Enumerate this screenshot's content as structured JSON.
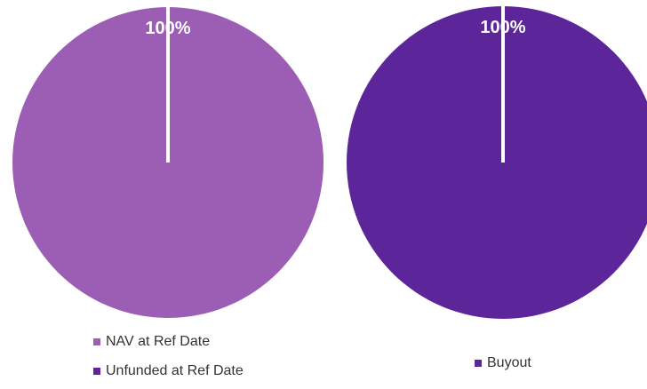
{
  "chart_data": [
    {
      "type": "pie",
      "categories": [
        "NAV at Ref Date",
        "Unfunded at Ref Date"
      ],
      "values": [
        100,
        0
      ],
      "value_labels": [
        "100%",
        null
      ],
      "colors": [
        "#9c5db4",
        "#5c2599"
      ]
    },
    {
      "type": "pie",
      "categories": [
        "Buyout"
      ],
      "values": [
        100
      ],
      "value_labels": [
        "100%"
      ],
      "colors": [
        "#5c2599"
      ]
    }
  ]
}
